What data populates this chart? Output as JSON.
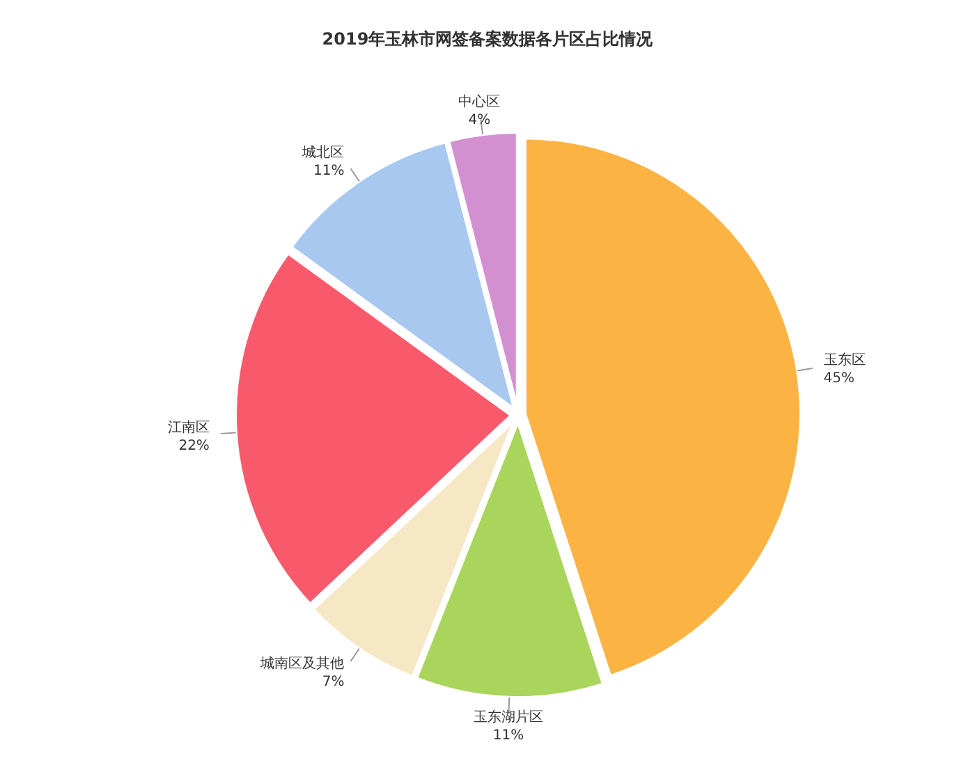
{
  "chart_data": {
    "type": "pie",
    "title": "2019年玉林市网签备案数据各片区占比情况",
    "categories": [
      "玉东区",
      "玉东湖片区",
      "城南区及其他",
      "江南区",
      "城北区",
      "中心区"
    ],
    "values": [
      45,
      11,
      7,
      22,
      11,
      4
    ],
    "value_labels": [
      "45%",
      "11%",
      "7%",
      "22%",
      "11%",
      "4%"
    ],
    "colors": [
      "#fbb444",
      "#a9d55c",
      "#f6e8c4",
      "#f85a6c",
      "#a8c8ef",
      "#d390d0"
    ],
    "legend": false
  }
}
